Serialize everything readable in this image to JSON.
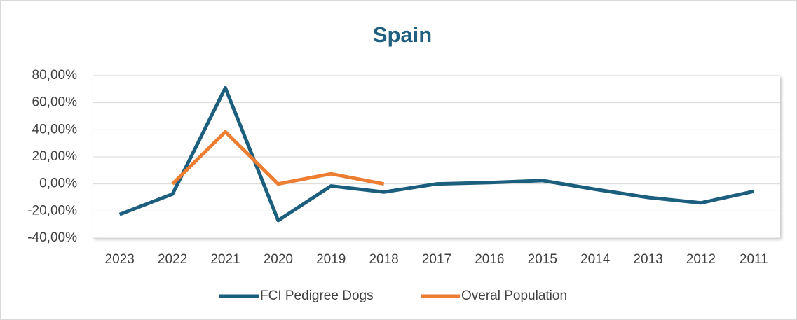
{
  "chart_data": {
    "type": "line",
    "title": "Spain",
    "categories": [
      "2023",
      "2022",
      "2021",
      "2020",
      "2019",
      "2018",
      "2017",
      "2016",
      "2015",
      "2014",
      "2013",
      "2012",
      "2011"
    ],
    "series": [
      {
        "name": "FCI Pedigree Dogs",
        "color": "#1b5e7e",
        "values": [
          -22.5,
          -7.5,
          71,
          -27,
          -1.5,
          -6,
          0,
          1,
          2.5,
          -4,
          -10,
          -14,
          -5.5
        ]
      },
      {
        "name": "Overal Population",
        "color": "#ed7d31",
        "values": [
          null,
          0,
          38.5,
          0,
          7.5,
          0,
          null,
          null,
          null,
          null,
          null,
          null,
          null
        ]
      }
    ],
    "ylim": [
      -40,
      80
    ],
    "yticks": [
      {
        "value": -40,
        "label": "-40,00%"
      },
      {
        "value": -20,
        "label": "-20,00%"
      },
      {
        "value": 0,
        "label": "0,00%"
      },
      {
        "value": 20,
        "label": "20,00%"
      },
      {
        "value": 40,
        "label": "40,00%"
      },
      {
        "value": 60,
        "label": "60,00%"
      },
      {
        "value": 80,
        "label": "80,00%"
      }
    ],
    "grid": true,
    "legend": "bottom"
  }
}
